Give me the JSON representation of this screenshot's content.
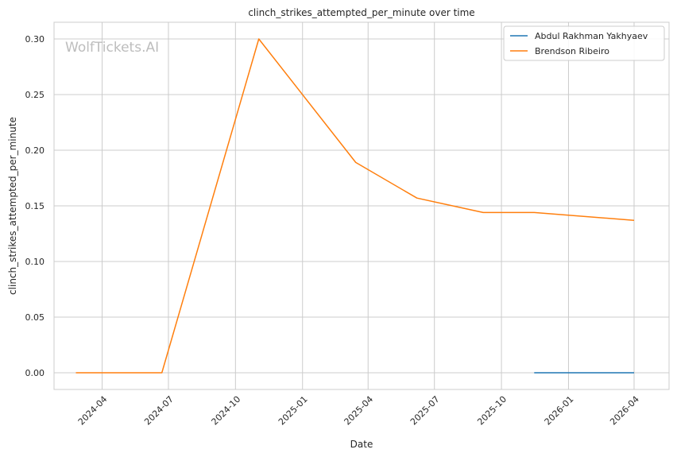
{
  "watermark": "WolfTickets.AI",
  "chart_data": {
    "type": "line",
    "title": "clinch_strikes_attempted_per_minute over time",
    "xlabel": "Date",
    "ylabel": "clinch_strikes_attempted_per_minute",
    "x_ticks": [
      "2024-04",
      "2024-07",
      "2024-10",
      "2025-01",
      "2025-04",
      "2025-07",
      "2025-10",
      "2026-01",
      "2026-04"
    ],
    "y_ticks": [
      0.0,
      0.05,
      0.1,
      0.15,
      0.2,
      0.25,
      0.3
    ],
    "ylim": [
      -0.015,
      0.315
    ],
    "xlim": [
      "2024-01-26",
      "2026-05-19"
    ],
    "grid": true,
    "legend_position": "top-right",
    "series": [
      {
        "name": "Abdul Rakhman Yakhyaev",
        "color": "#1f77b4",
        "points": [
          {
            "x": "2025-11-15",
            "y": 0.0
          },
          {
            "x": "2026-04-01",
            "y": 0.0
          }
        ]
      },
      {
        "name": "Brendson Ribeiro",
        "color": "#ff7f0e",
        "points": [
          {
            "x": "2024-02-25",
            "y": 0.0
          },
          {
            "x": "2024-06-22",
            "y": 0.0
          },
          {
            "x": "2024-11-02",
            "y": 0.3
          },
          {
            "x": "2025-03-15",
            "y": 0.189
          },
          {
            "x": "2025-06-07",
            "y": 0.157
          },
          {
            "x": "2025-09-06",
            "y": 0.144
          },
          {
            "x": "2025-11-15",
            "y": 0.144
          },
          {
            "x": "2026-04-01",
            "y": 0.137
          }
        ]
      }
    ]
  }
}
